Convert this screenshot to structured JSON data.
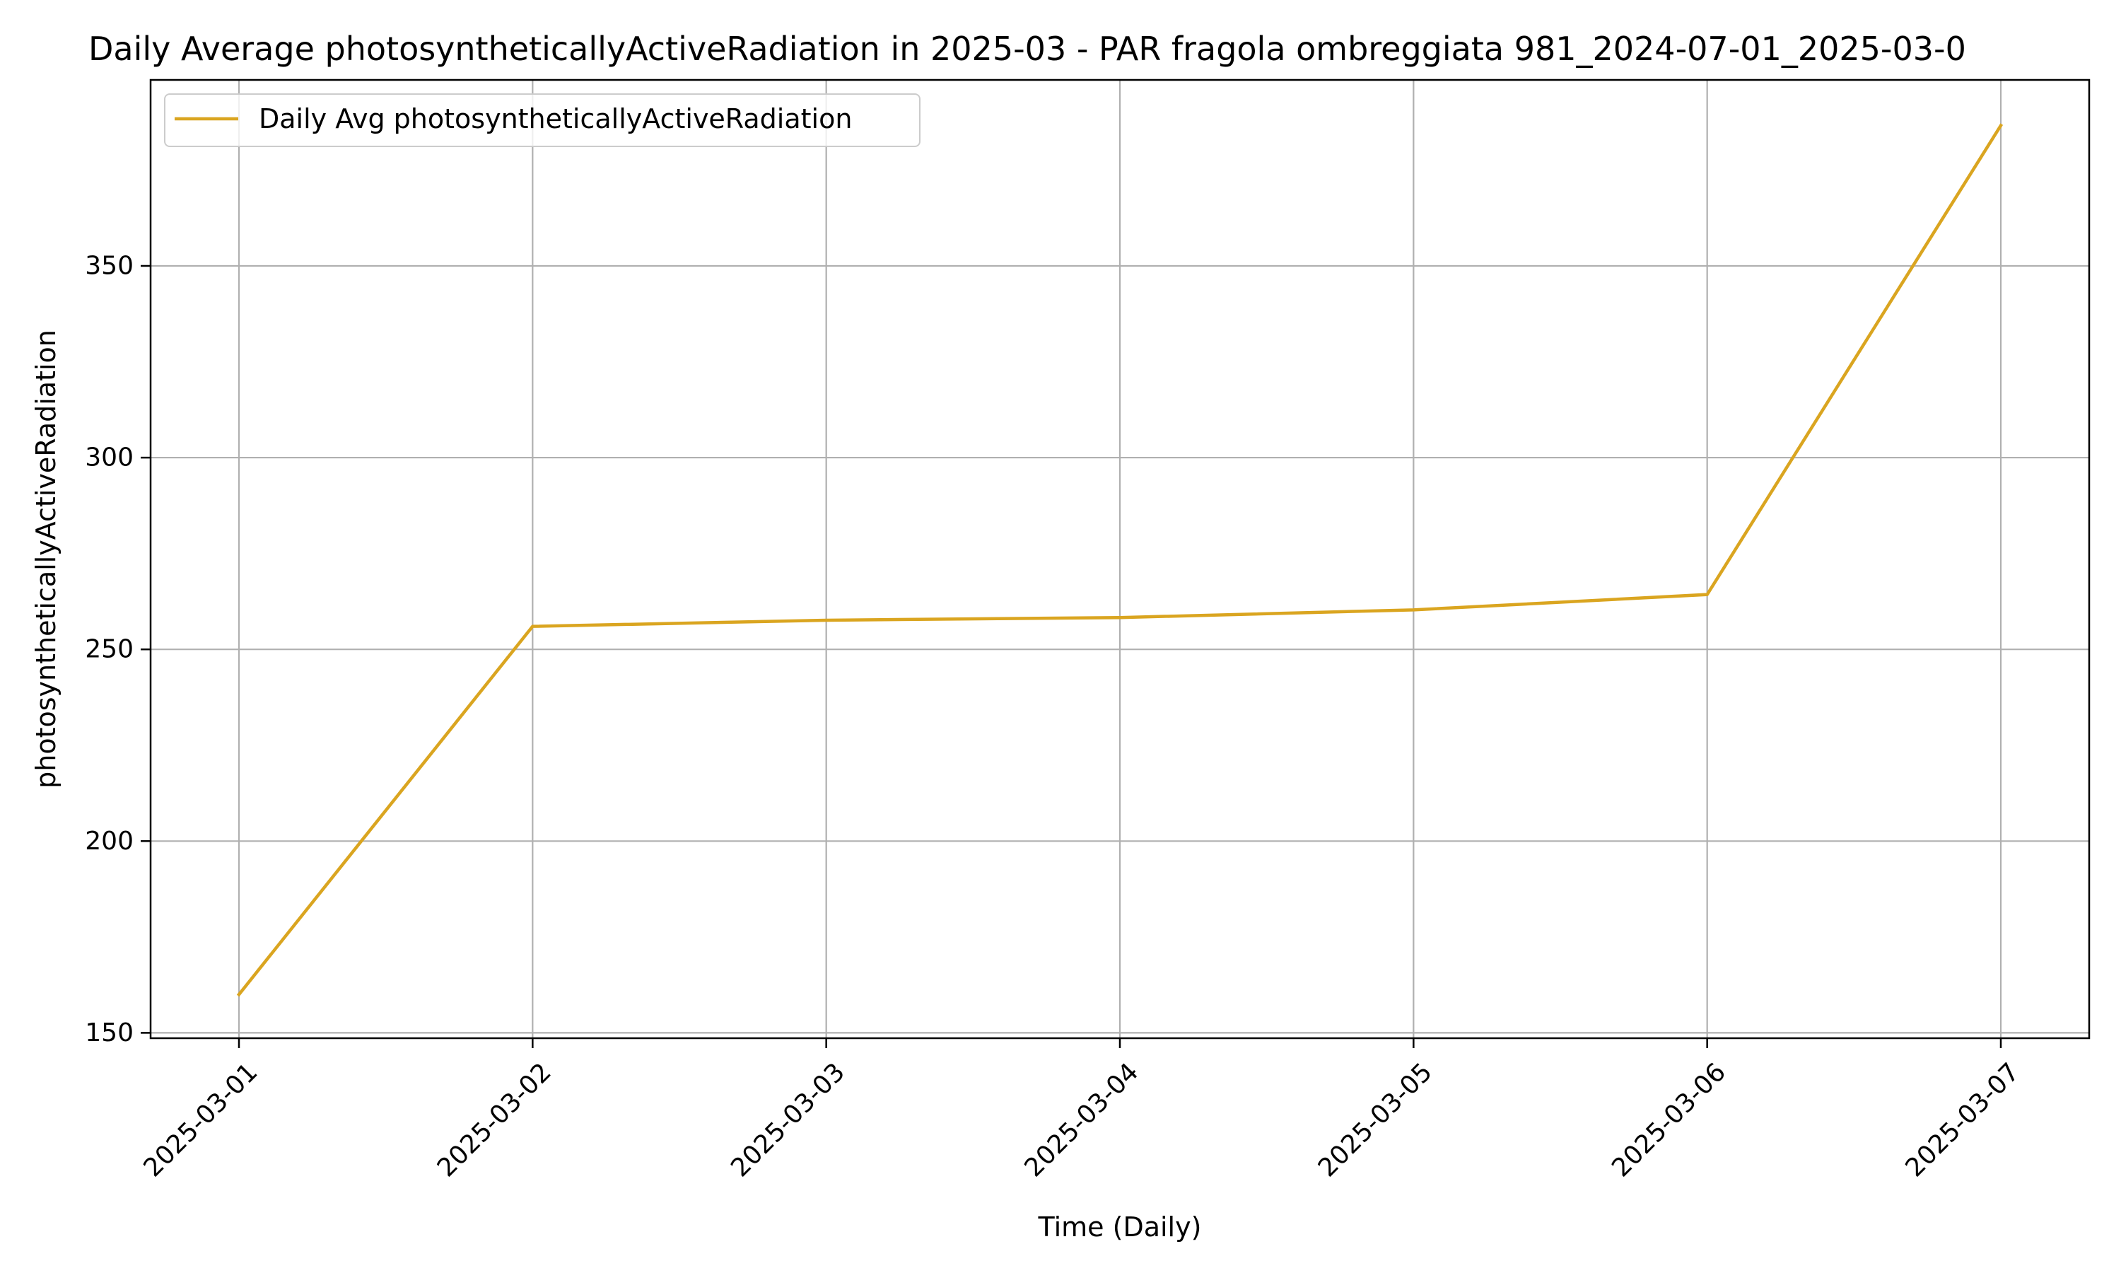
{
  "chart_data": {
    "type": "line",
    "title": "Daily Average photosyntheticallyActiveRadiation in 2025-03 - PAR fragola ombreggiata 981_2024-07-01_2025-03-0",
    "xlabel": "Time (Daily)",
    "ylabel": "photosyntheticallyActiveRadiation",
    "x": [
      "2025-03-01",
      "2025-03-02",
      "2025-03-03",
      "2025-03-04",
      "2025-03-05",
      "2025-03-06",
      "2025-03-07"
    ],
    "series": [
      {
        "name": "Daily Avg photosyntheticallyActiveRadiation",
        "color": "#DAA520",
        "values": [
          160.0,
          256.0,
          257.6,
          258.3,
          260.3,
          264.3,
          386.6
        ]
      }
    ],
    "yticks": [
      150,
      200,
      250,
      300,
      350
    ],
    "ylim": [
      148.6,
      398.5
    ],
    "grid": true,
    "legend_position": "upper-left"
  }
}
